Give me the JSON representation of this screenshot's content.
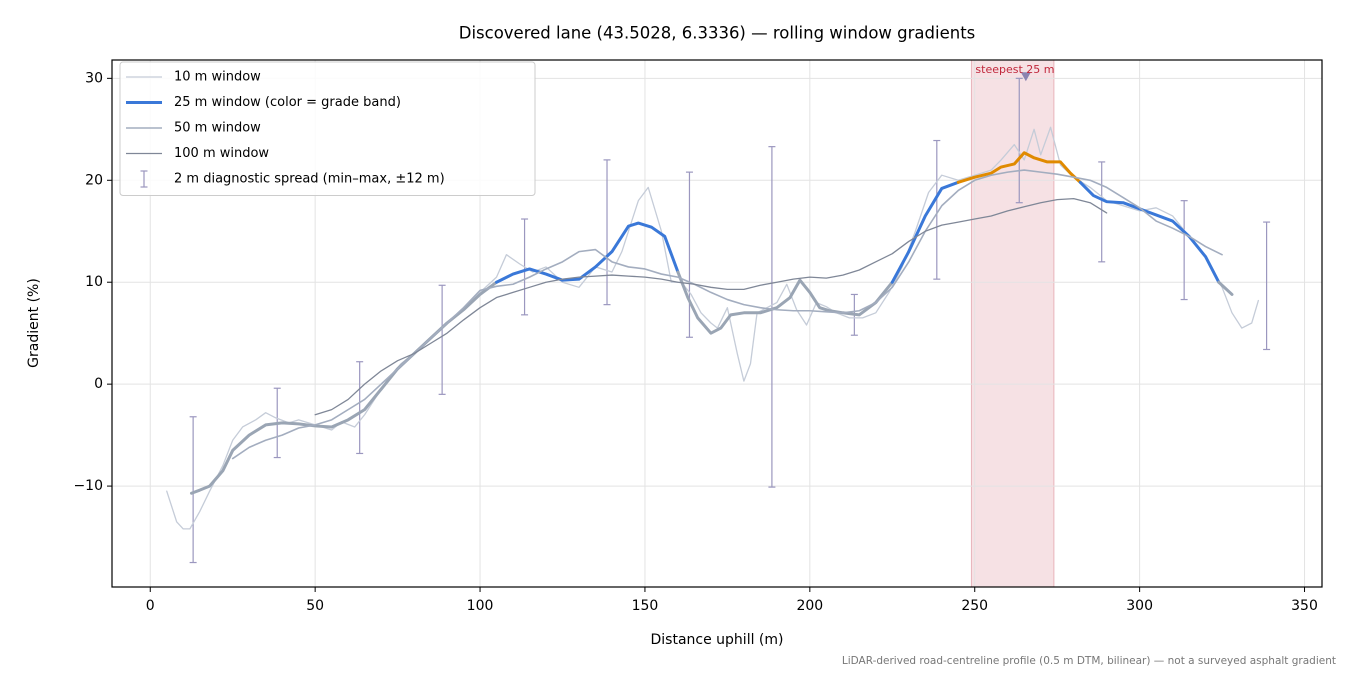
{
  "chart_data": {
    "type": "line",
    "title": "Discovered lane (43.5028, 6.3336) — rolling window gradients",
    "xlabel": "Distance uphill (m)",
    "ylabel": "Gradient (%)",
    "footnote": "LiDAR-derived road-centreline profile (0.5 m DTM, bilinear) — not a surveyed asphalt gradient",
    "xlim": [
      -11.6,
      355.3
    ],
    "ylim": [
      -19.9,
      31.8
    ],
    "xticks": [
      0,
      50,
      100,
      150,
      200,
      250,
      300,
      350
    ],
    "yticks": [
      {
        "value": -10,
        "label": "−10"
      },
      0,
      10,
      20,
      30
    ],
    "grid": true,
    "legend": "upper left",
    "highlight": {
      "x0": 249,
      "x1": 274,
      "label": "steepest 25 m",
      "color": "#e8b4bb",
      "label_color": "#c0283c"
    },
    "marker": {
      "x": 265.5,
      "y": 30.2,
      "color": "#8a84b0"
    },
    "series": [
      {
        "name": "10 m window",
        "color": "#c5ccd8",
        "width": 1.3,
        "x": [
          5,
          8,
          10,
          12,
          15,
          18,
          22,
          25,
          28,
          32,
          35,
          38,
          42,
          45,
          50,
          55,
          58,
          62,
          65,
          68,
          72,
          76,
          80,
          85,
          90,
          95,
          100,
          105,
          108,
          112,
          116,
          120,
          125,
          130,
          135,
          140,
          143,
          148,
          151,
          155,
          158,
          161,
          164,
          167,
          170,
          172,
          175,
          178,
          180,
          182,
          184,
          187,
          190,
          193,
          196,
          199,
          202,
          205,
          208,
          212,
          216,
          220,
          224,
          228,
          232,
          236,
          240,
          245,
          250,
          255,
          258,
          262,
          265,
          268,
          270,
          273,
          276,
          280,
          285,
          290,
          295,
          300,
          305,
          310,
          315,
          320,
          325,
          328,
          331,
          334,
          336
        ],
        "values": [
          -10.5,
          -13.5,
          -14.2,
          -14.2,
          -12.5,
          -10.5,
          -8,
          -5.5,
          -4.2,
          -3.5,
          -2.8,
          -3.3,
          -3.8,
          -3.5,
          -4,
          -4.5,
          -3.7,
          -4.2,
          -3,
          -1.5,
          0.5,
          2,
          3,
          4.5,
          6,
          7.5,
          9,
          10.5,
          12.7,
          11.8,
          11,
          11.5,
          10,
          9.5,
          11.5,
          11,
          13,
          18,
          19.3,
          15,
          10,
          10,
          8.8,
          7,
          6,
          5.5,
          7.5,
          3,
          0.3,
          2,
          7,
          7.5,
          8,
          9.8,
          7.3,
          5.8,
          8,
          7.6,
          7,
          6.5,
          6.5,
          7,
          9,
          11.5,
          15,
          18.8,
          20.5,
          20,
          20.5,
          21,
          22,
          23.5,
          22,
          25,
          22.5,
          25.2,
          21.5,
          20.3,
          19.3,
          18,
          17.5,
          17,
          17.3,
          16.5,
          14.5,
          12.5,
          9.5,
          7,
          5.5,
          6,
          8.2
        ]
      },
      {
        "name": "25 m window (color = grade band)",
        "color": "#3a78d8",
        "width": 3,
        "grade_bands": [
          {
            "max": 10,
            "color": "#9aa5b4"
          },
          {
            "max": 20,
            "color": "#3a78d8"
          },
          {
            "color": "#e08a00"
          }
        ],
        "x": [
          12.5,
          15,
          18,
          22,
          25,
          30,
          35,
          40,
          45,
          50,
          55,
          60,
          65,
          70,
          75,
          80,
          85,
          90,
          95,
          100,
          105,
          110,
          115,
          120,
          125,
          130,
          135,
          140,
          145,
          148,
          152,
          156,
          160,
          163,
          166,
          170,
          173,
          176,
          180,
          185,
          190,
          194,
          197,
          200,
          203,
          206,
          210,
          215,
          220,
          225,
          230,
          235,
          240,
          245,
          250,
          255,
          258,
          262,
          265,
          268,
          272,
          276,
          279,
          282,
          286,
          290,
          295,
          300,
          305,
          310,
          315,
          320,
          324,
          328
        ],
        "values": [
          -10.7,
          -10.4,
          -10,
          -8.5,
          -6.5,
          -5,
          -4,
          -3.8,
          -3.9,
          -4.1,
          -4.2,
          -3.5,
          -2.5,
          -0.5,
          1.5,
          3,
          4.5,
          6,
          7.3,
          8.8,
          10,
          10.8,
          11.3,
          10.8,
          10.2,
          10.3,
          11.5,
          13,
          15.5,
          15.8,
          15.4,
          14.5,
          11,
          8.5,
          6.5,
          5,
          5.5,
          6.8,
          7,
          7,
          7.5,
          8.5,
          10.2,
          9,
          7.5,
          7.2,
          7,
          6.8,
          8,
          10,
          13,
          16.5,
          19.2,
          19.8,
          20.3,
          20.7,
          21.3,
          21.6,
          22.7,
          22.2,
          21.8,
          21.8,
          20.7,
          19.8,
          18.5,
          17.9,
          17.8,
          17.2,
          16.6,
          16,
          14.5,
          12.5,
          10,
          8.8
        ]
      },
      {
        "name": "50 m window",
        "color": "#a3adbf",
        "width": 1.6,
        "x": [
          25,
          30,
          35,
          40,
          45,
          50,
          55,
          60,
          65,
          70,
          75,
          80,
          85,
          90,
          95,
          100,
          105,
          110,
          115,
          120,
          125,
          130,
          135,
          140,
          145,
          150,
          155,
          160,
          165,
          170,
          175,
          180,
          185,
          190,
          195,
          200,
          205,
          210,
          215,
          220,
          225,
          230,
          235,
          240,
          245,
          250,
          255,
          260,
          265,
          270,
          275,
          280,
          285,
          290,
          295,
          300,
          305,
          310,
          315,
          320,
          325
        ],
        "values": [
          -7.3,
          -6.2,
          -5.5,
          -5,
          -4.3,
          -4,
          -3.5,
          -2.5,
          -1.5,
          0,
          1.5,
          3,
          4.5,
          6,
          7.5,
          9.2,
          9.6,
          9.8,
          10.5,
          11.3,
          12,
          13,
          13.2,
          12,
          11.5,
          11.3,
          10.8,
          10.5,
          9.8,
          9,
          8.3,
          7.8,
          7.5,
          7.3,
          7.2,
          7.2,
          7.1,
          7,
          7.2,
          8,
          9.5,
          12,
          15,
          17.5,
          19,
          20,
          20.5,
          20.8,
          21,
          20.8,
          20.6,
          20.3,
          20,
          19.3,
          18.3,
          17.3,
          16,
          15.3,
          14.5,
          13.5,
          12.7
        ]
      },
      {
        "name": "100 m window",
        "color": "#7f8797",
        "width": 1.3,
        "x": [
          50,
          55,
          60,
          65,
          70,
          75,
          80,
          85,
          90,
          95,
          100,
          105,
          110,
          115,
          120,
          125,
          130,
          135,
          140,
          145,
          150,
          155,
          160,
          165,
          170,
          175,
          180,
          185,
          190,
          195,
          200,
          205,
          210,
          215,
          220,
          225,
          230,
          235,
          240,
          245,
          250,
          255,
          260,
          265,
          270,
          275,
          280,
          285,
          290
        ],
        "values": [
          -3,
          -2.5,
          -1.5,
          0,
          1.3,
          2.3,
          3,
          4,
          5,
          6.3,
          7.5,
          8.5,
          9,
          9.5,
          10,
          10.3,
          10.5,
          10.6,
          10.7,
          10.6,
          10.5,
          10.3,
          10,
          9.8,
          9.5,
          9.3,
          9.3,
          9.7,
          10,
          10.3,
          10.5,
          10.4,
          10.7,
          11.2,
          12,
          12.8,
          14,
          15,
          15.6,
          15.9,
          16.2,
          16.5,
          17,
          17.4,
          17.8,
          18.1,
          18.2,
          17.8,
          16.8
        ]
      }
    ],
    "errorbars": {
      "name": "2 m diagnostic spread (min–max, ±12 m)",
      "color": "#9b97bf",
      "x": [
        13,
        38.5,
        63.5,
        88.5,
        113.5,
        138.5,
        163.5,
        188.5,
        213.5,
        238.5,
        263.5,
        288.5,
        313.5,
        338.5
      ],
      "low": [
        -17.5,
        -7.2,
        -6.8,
        -1,
        6.8,
        7.8,
        4.6,
        -10.1,
        4.8,
        10.3,
        17.8,
        12,
        8.3,
        3.4
      ],
      "high": [
        -3.2,
        -0.4,
        2.2,
        9.7,
        16.2,
        22,
        20.8,
        23.3,
        8.8,
        23.9,
        30,
        21.8,
        18,
        15.9
      ]
    }
  }
}
